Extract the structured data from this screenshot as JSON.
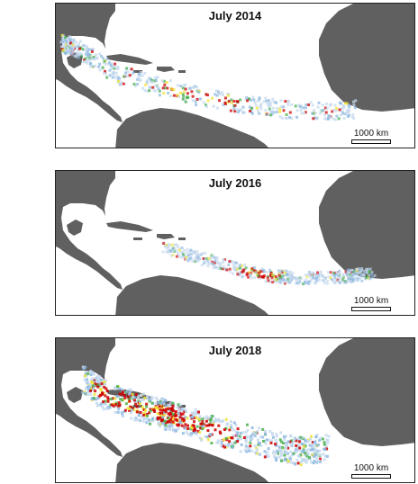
{
  "colors": {
    "land": "#606060",
    "ocean": "#ffffff",
    "density_low": "#c6d9ee",
    "density_medium": "#8fb8e0",
    "density_high_green": "#4cb050",
    "density_high_yellow": "#f1e433",
    "density_max": "#cc0000"
  },
  "panels": [
    {
      "title": "July 2014",
      "scale_label": "1000 km"
    },
    {
      "title": "July 2016",
      "scale_label": "1000 km"
    },
    {
      "title": "July 2018",
      "scale_label": "1000 km"
    }
  ]
}
